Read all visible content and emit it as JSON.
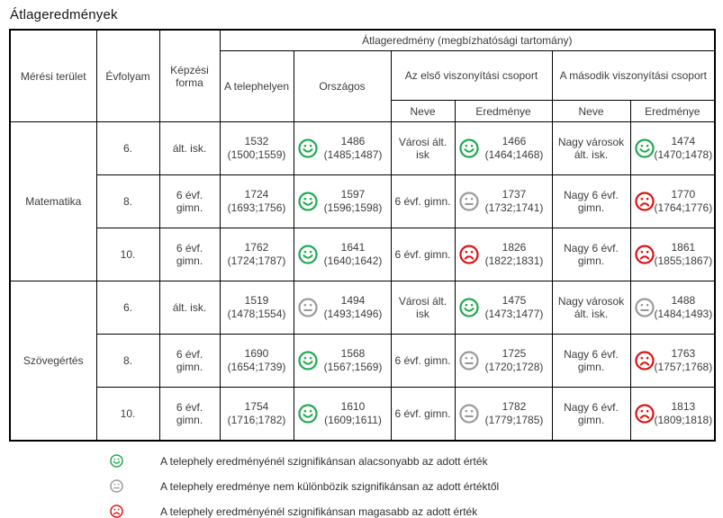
{
  "title": "Átlageredmények",
  "colors": {
    "happy": "#1faa4e",
    "neutral": "#9a9a9a",
    "sad": "#dd1111"
  },
  "table": {
    "headers": {
      "area": "Mérési terület",
      "grade": "Évfolyam",
      "form": "Képzési forma",
      "avg_span": "Átlageredmény (megbízhatósági tartomány)",
      "site": "A telephelyen",
      "national": "Országos",
      "group1": "Az első viszonyítási csoport",
      "group2": "A második viszonyítási csoport",
      "name": "Neve",
      "result": "Eredménye"
    },
    "groups": [
      {
        "area": "Matematika",
        "rows": [
          {
            "grade": "6.",
            "form": "ált. isk.",
            "site": {
              "value": "1532",
              "range": "(1500;1559)"
            },
            "national": {
              "mood": "happy",
              "value": "1486",
              "range": "(1485;1487)"
            },
            "group1_name": "Városi ált. isk",
            "group1": {
              "mood": "happy",
              "value": "1466",
              "range": "(1464;1468)"
            },
            "group2_name": "Nagy városok ált. isk.",
            "group2": {
              "mood": "happy",
              "value": "1474",
              "range": "(1470;1478)"
            }
          },
          {
            "grade": "8.",
            "form": "6 évf. gimn.",
            "site": {
              "value": "1724",
              "range": "(1693;1756)"
            },
            "national": {
              "mood": "happy",
              "value": "1597",
              "range": "(1596;1598)"
            },
            "group1_name": "6 évf. gimn.",
            "group1": {
              "mood": "neutral",
              "value": "1737",
              "range": "(1732;1741)"
            },
            "group2_name": "Nagy 6 évf. gimn.",
            "group2": {
              "mood": "sad",
              "value": "1770",
              "range": "(1764;1776)"
            }
          },
          {
            "grade": "10.",
            "form": "6 évf. gimn.",
            "site": {
              "value": "1762",
              "range": "(1724;1787)"
            },
            "national": {
              "mood": "happy",
              "value": "1641",
              "range": "(1640;1642)"
            },
            "group1_name": "6 évf. gimn.",
            "group1": {
              "mood": "sad",
              "value": "1826",
              "range": "(1822;1831)"
            },
            "group2_name": "Nagy 6 évf. gimn.",
            "group2": {
              "mood": "sad",
              "value": "1861",
              "range": "(1855;1867)"
            }
          }
        ]
      },
      {
        "area": "Szövegértés",
        "rows": [
          {
            "grade": "6.",
            "form": "ált. isk.",
            "site": {
              "value": "1519",
              "range": "(1478;1554)"
            },
            "national": {
              "mood": "neutral",
              "value": "1494",
              "range": "(1493;1496)"
            },
            "group1_name": "Városi ált. isk",
            "group1": {
              "mood": "happy",
              "value": "1475",
              "range": "(1473;1477)"
            },
            "group2_name": "Nagy városok ált. isk.",
            "group2": {
              "mood": "neutral",
              "value": "1488",
              "range": "(1484;1493)"
            }
          },
          {
            "grade": "8.",
            "form": "6 évf. gimn.",
            "site": {
              "value": "1690",
              "range": "(1654;1739)"
            },
            "national": {
              "mood": "happy",
              "value": "1568",
              "range": "(1567;1569)"
            },
            "group1_name": "6 évf. gimn.",
            "group1": {
              "mood": "neutral",
              "value": "1725",
              "range": "(1720;1728)"
            },
            "group2_name": "Nagy 6 évf. gimn.",
            "group2": {
              "mood": "sad",
              "value": "1763",
              "range": "(1757;1768)"
            }
          },
          {
            "grade": "10.",
            "form": "6 évf. gimn.",
            "site": {
              "value": "1754",
              "range": "(1716;1782)"
            },
            "national": {
              "mood": "happy",
              "value": "1610",
              "range": "(1609;1611)"
            },
            "group1_name": "6 évf. gimn.",
            "group1": {
              "mood": "neutral",
              "value": "1782",
              "range": "(1779;1785)"
            },
            "group2_name": "Nagy 6 évf. gimn.",
            "group2": {
              "mood": "sad",
              "value": "1813",
              "range": "(1809;1818)"
            }
          }
        ]
      }
    ]
  },
  "legend": [
    {
      "mood": "happy",
      "text": "A telephely eredményénél szignifikánsan alacsonyabb az adott érték"
    },
    {
      "mood": "neutral",
      "text": "A telephely eredménye nem különbözik szignifikánsan az adott értéktől"
    },
    {
      "mood": "sad",
      "text": "A telephely eredményénél szignifikánsan magasabb az adott érték"
    }
  ]
}
